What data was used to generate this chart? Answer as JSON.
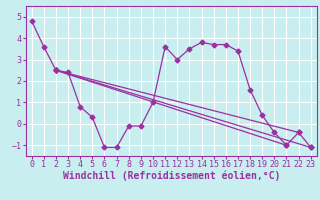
{
  "background_color": "#c8eef0",
  "line_color": "#9b30a0",
  "grid_color": "#ffffff",
  "xlabel": "Windchill (Refroidissement éolien,°C)",
  "ylim": [
    -1.5,
    5.5
  ],
  "xlim": [
    -0.5,
    23.5
  ],
  "yticks": [
    -1,
    0,
    1,
    2,
    3,
    4,
    5
  ],
  "xticks": [
    0,
    1,
    2,
    3,
    4,
    5,
    6,
    7,
    8,
    9,
    10,
    11,
    12,
    13,
    14,
    15,
    16,
    17,
    18,
    19,
    20,
    21,
    22,
    23
  ],
  "xlabel_fontsize": 7,
  "tick_fontsize": 6,
  "markersize": 2.5,
  "linewidth": 0.9,
  "series0_x": [
    0,
    1,
    2,
    3,
    4,
    5,
    6,
    7,
    8,
    9,
    10,
    11,
    12,
    13,
    14,
    15,
    16,
    17,
    18,
    19,
    20,
    21,
    22,
    23
  ],
  "series0_y": [
    4.8,
    3.6,
    2.5,
    2.4,
    0.8,
    0.3,
    -1.1,
    -1.1,
    -0.1,
    -0.1,
    1.0,
    3.6,
    3.0,
    3.5,
    3.8,
    3.7,
    3.7,
    3.4,
    1.6,
    0.4,
    -0.4,
    -1.0,
    -0.4,
    -1.1
  ],
  "line1": [
    [
      2,
      2.5
    ],
    [
      23,
      -1.1
    ]
  ],
  "line2": [
    [
      2,
      2.5
    ],
    [
      22,
      -0.4
    ]
  ],
  "line3": [
    [
      2,
      2.5
    ],
    [
      21,
      -1.0
    ]
  ]
}
